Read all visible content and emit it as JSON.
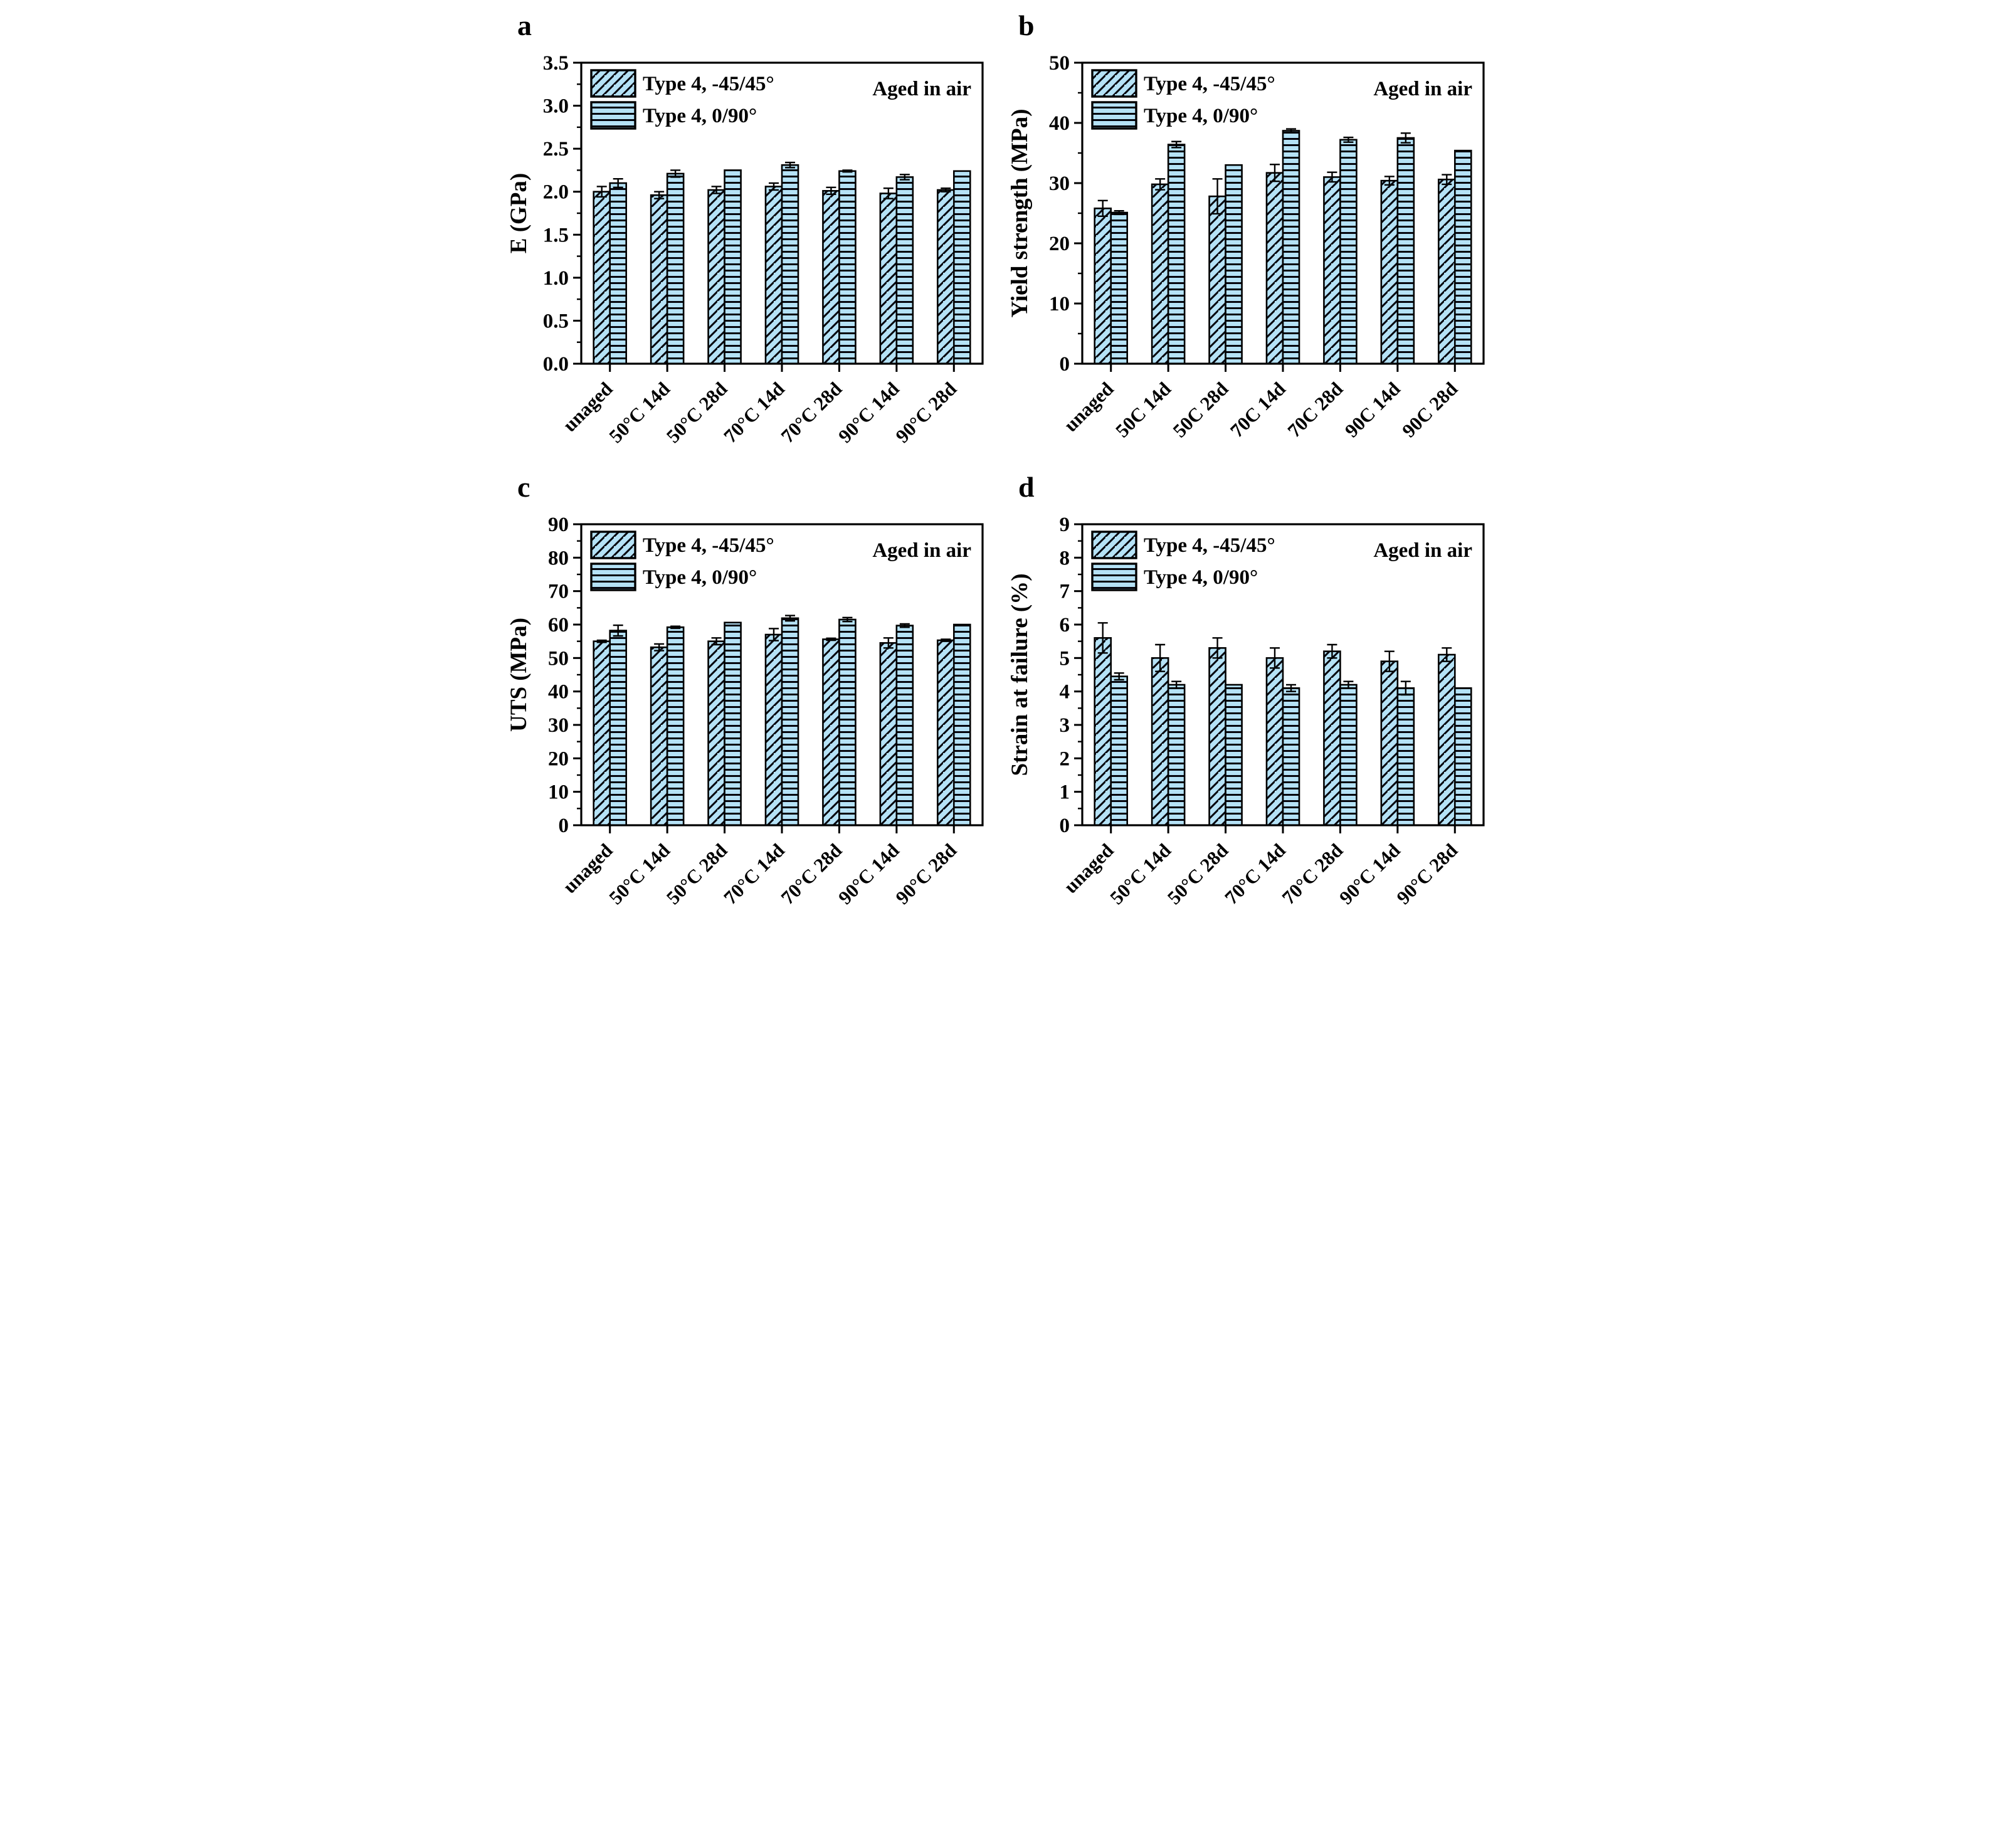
{
  "figure": {
    "annotation": "Aged in air",
    "legend": [
      "Type 4, -45/45°",
      "Type 4, 0/90°"
    ],
    "colors": {
      "bar_fill": "#b5e2f6",
      "hatch_line": "#06060e",
      "axis": "#000000",
      "background": "#ffffff"
    }
  },
  "chart_data": [
    {
      "id": "a",
      "type": "bar",
      "panel_label": "a",
      "ylabel": "E (GPa)",
      "ylim": [
        0,
        3.5
      ],
      "yticks": [
        "0.0",
        "0.5",
        "1.0",
        "1.5",
        "2.0",
        "2.5",
        "3.0",
        "3.5"
      ],
      "minor_per_major": 1,
      "grid": false,
      "legend_position": "top-left",
      "annotation": "Aged in air",
      "legend": [
        "Type 4, -45/45°",
        "Type 4, 0/90°"
      ],
      "categories": [
        "unaged",
        "50°C 14d",
        "50°C 28d",
        "70°C 14d",
        "70°C 28d",
        "90°C 14d",
        "90°C 28d"
      ],
      "series": [
        {
          "name": "Type 4, -45/45°",
          "hatch": "diagonal",
          "values": [
            2.0,
            1.96,
            2.02,
            2.06,
            2.01,
            1.98,
            2.02
          ],
          "errors": [
            0.06,
            0.04,
            0.04,
            0.04,
            0.04,
            0.06,
            0.02
          ]
        },
        {
          "name": "Type 4, 0/90°",
          "hatch": "horizontal",
          "values": [
            2.1,
            2.21,
            2.25,
            2.31,
            2.24,
            2.17,
            2.24
          ],
          "errors": [
            0.05,
            0.04,
            0.0,
            0.03,
            0.01,
            0.03,
            0.0
          ]
        }
      ]
    },
    {
      "id": "b",
      "type": "bar",
      "panel_label": "b",
      "ylabel": "Yield strength (MPa)",
      "ylim": [
        0,
        50
      ],
      "yticks": [
        "0",
        "10",
        "20",
        "30",
        "40",
        "50"
      ],
      "minor_per_major": 1,
      "grid": false,
      "legend_position": "top-left",
      "annotation": "Aged in air",
      "legend": [
        "Type 4, -45/45°",
        "Type 4, 0/90°"
      ],
      "categories": [
        "unaged",
        "50C 14d",
        "50C 28d",
        "70C 14d",
        "70C 28d",
        "90C 14d",
        "90C 28d"
      ],
      "series": [
        {
          "name": "Type 4, -45/45°",
          "hatch": "diagonal",
          "values": [
            25.8,
            29.8,
            27.8,
            31.7,
            31.0,
            30.4,
            30.6
          ],
          "errors": [
            1.3,
            0.9,
            2.9,
            1.4,
            0.8,
            0.7,
            0.8
          ]
        },
        {
          "name": "Type 4, 0/90°",
          "hatch": "horizontal",
          "values": [
            25.1,
            36.4,
            33.0,
            38.7,
            37.2,
            37.5,
            35.4
          ],
          "errors": [
            0.3,
            0.5,
            0.0,
            0.3,
            0.4,
            0.8,
            0.0
          ]
        }
      ]
    },
    {
      "id": "c",
      "type": "bar",
      "panel_label": "c",
      "ylabel": "UTS (MPa)",
      "ylim": [
        0,
        90
      ],
      "yticks": [
        "0",
        "10",
        "20",
        "30",
        "40",
        "50",
        "60",
        "70",
        "80",
        "90"
      ],
      "minor_per_major": 1,
      "grid": false,
      "legend_position": "top-left",
      "annotation": "Aged in air",
      "legend": [
        "Type 4, -45/45°",
        "Type 4, 0/90°"
      ],
      "categories": [
        "unaged",
        "50°C 14d",
        "50°C 28d",
        "70°C 14d",
        "70°C 28d",
        "90°C 14d",
        "90°C 28d"
      ],
      "series": [
        {
          "name": "Type 4, -45/45°",
          "hatch": "diagonal",
          "values": [
            55.0,
            53.2,
            55.0,
            57.0,
            55.6,
            54.5,
            55.3
          ],
          "errors": [
            0.3,
            1.0,
            1.0,
            1.8,
            0.3,
            1.5,
            0.3
          ]
        },
        {
          "name": "Type 4, 0/90°",
          "hatch": "horizontal",
          "values": [
            58.2,
            59.2,
            60.6,
            61.9,
            61.5,
            59.7,
            60.0
          ],
          "errors": [
            1.6,
            0.3,
            0.0,
            0.8,
            0.6,
            0.5,
            0.0
          ]
        }
      ]
    },
    {
      "id": "d",
      "type": "bar",
      "panel_label": "d",
      "ylabel": "Strain at failure (%)",
      "ylim": [
        0,
        9
      ],
      "yticks": [
        "0",
        "1",
        "2",
        "3",
        "4",
        "5",
        "6",
        "7",
        "8",
        "9"
      ],
      "minor_per_major": 1,
      "grid": false,
      "legend_position": "top-left",
      "annotation": "Aged in air",
      "legend": [
        "Type 4, -45/45°",
        "Type 4, 0/90°"
      ],
      "categories": [
        "unaged",
        "50°C 14d",
        "50°C 28d",
        "70°C 14d",
        "70°C 28d",
        "90°C 14d",
        "90°C 28d"
      ],
      "series": [
        {
          "name": "Type 4, -45/45°",
          "hatch": "diagonal",
          "values": [
            5.6,
            5.0,
            5.3,
            5.0,
            5.2,
            4.9,
            5.1
          ],
          "errors": [
            0.45,
            0.4,
            0.3,
            0.3,
            0.2,
            0.3,
            0.2
          ]
        },
        {
          "name": "Type 4, 0/90°",
          "hatch": "horizontal",
          "values": [
            4.45,
            4.2,
            4.2,
            4.1,
            4.2,
            4.1,
            4.1
          ],
          "errors": [
            0.1,
            0.1,
            0.0,
            0.1,
            0.1,
            0.2,
            0.0
          ]
        }
      ]
    }
  ]
}
